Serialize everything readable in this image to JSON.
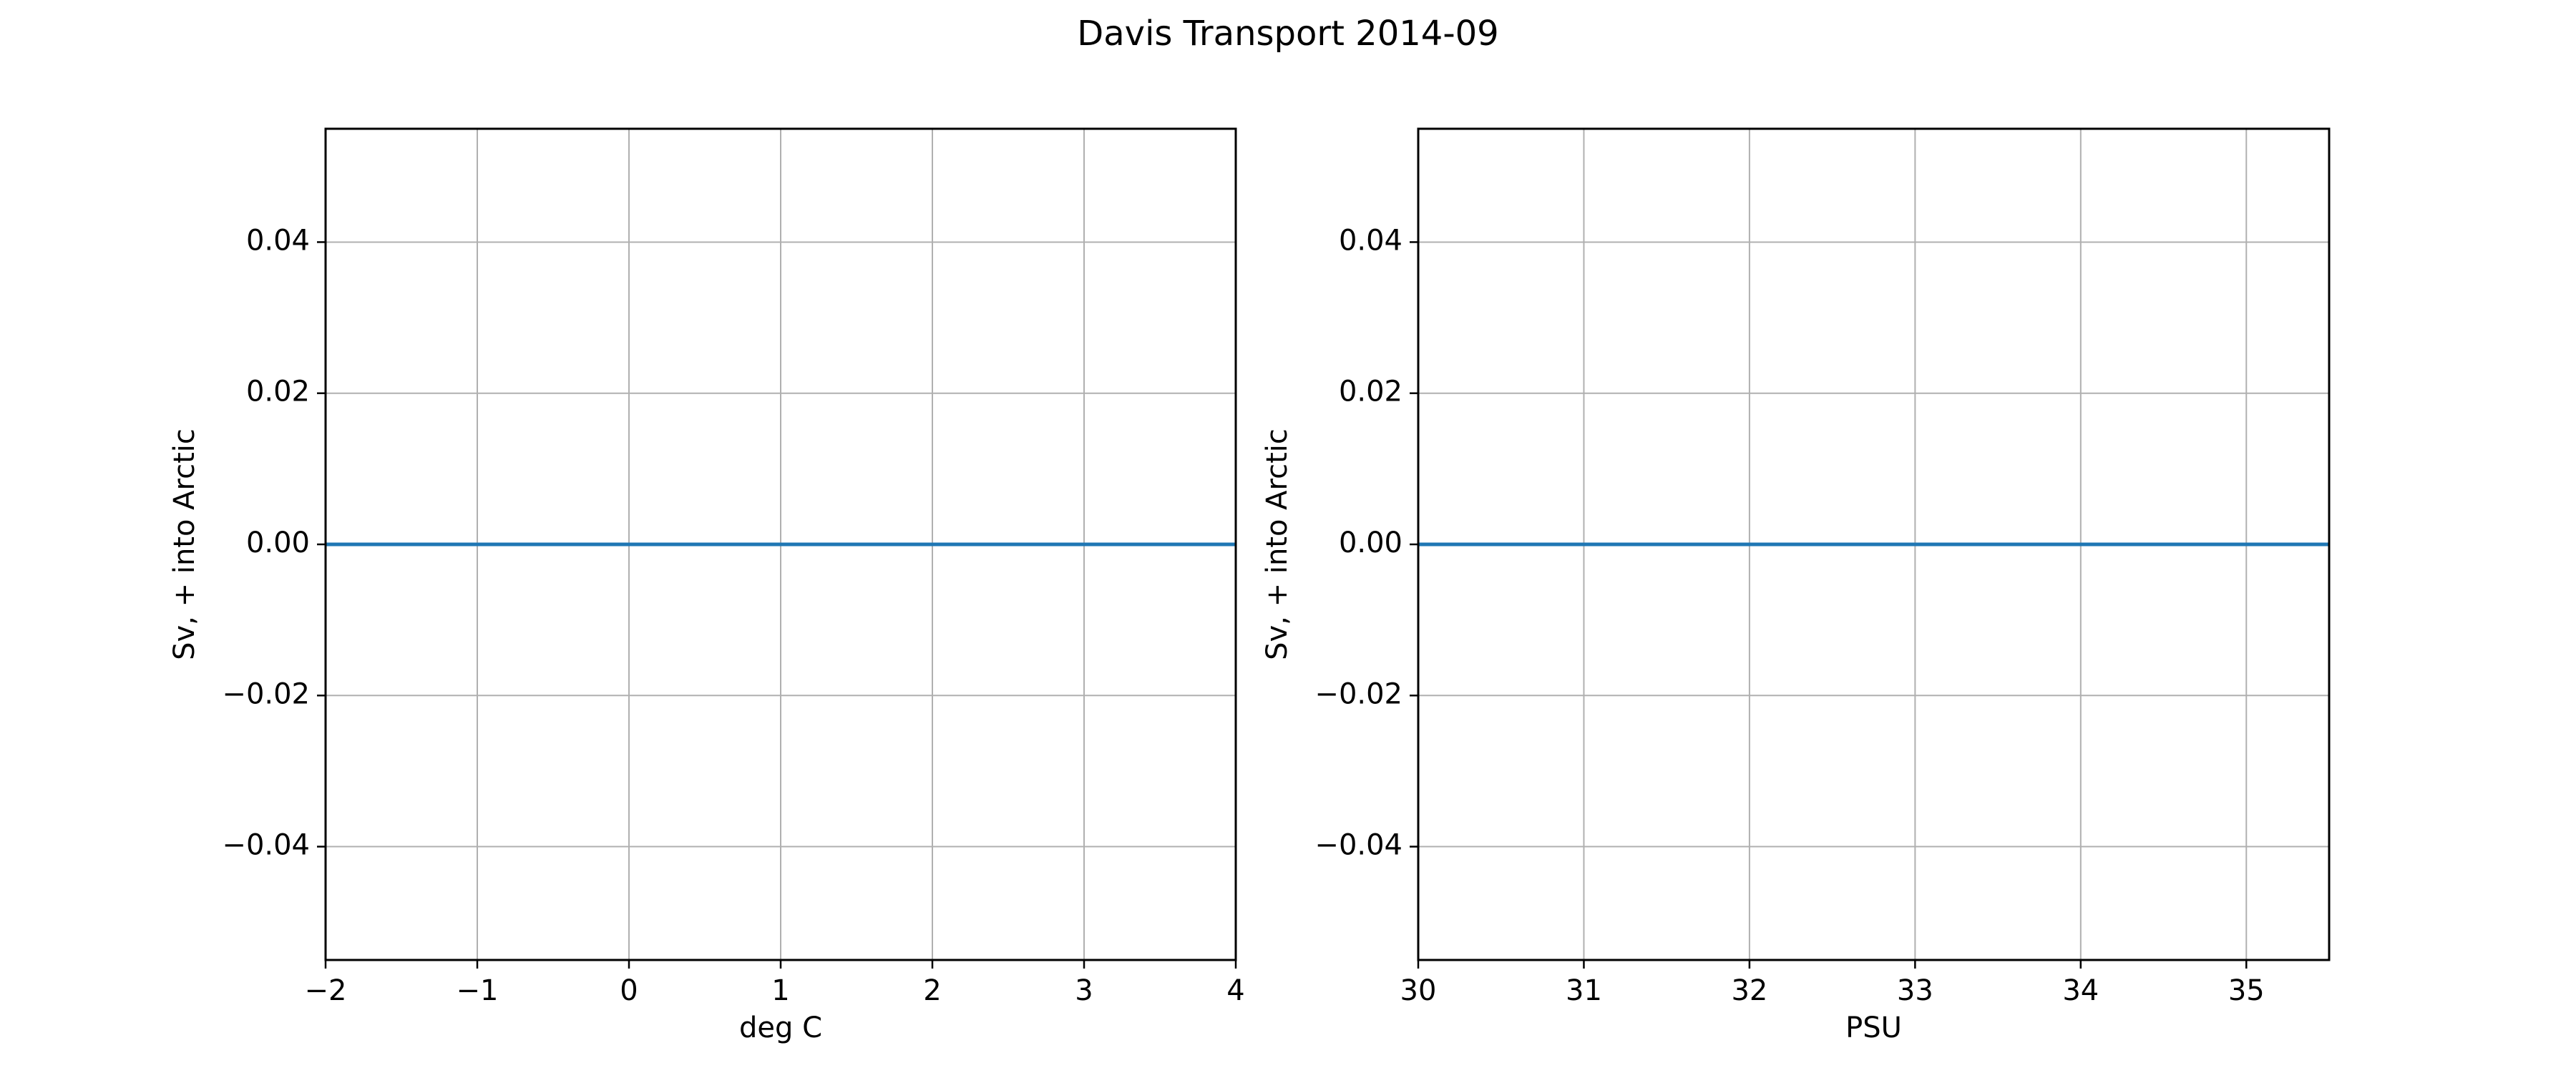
{
  "figure": {
    "title": "Davis Transport 2014-09"
  },
  "chart_data": [
    {
      "type": "line",
      "xlabel": "deg C",
      "ylabel": "Sv, + into Arctic",
      "xlim": [
        -2,
        4
      ],
      "ylim": [
        -0.055,
        0.055
      ],
      "xticks": [
        -2,
        -1,
        0,
        1,
        2,
        3,
        4
      ],
      "xtick_labels": [
        "−2",
        "−1",
        "0",
        "1",
        "2",
        "3",
        "4"
      ],
      "yticks": [
        -0.04,
        -0.02,
        0.0,
        0.02,
        0.04
      ],
      "ytick_labels": [
        "−0.04",
        "−0.02",
        "0.00",
        "0.02",
        "0.04"
      ],
      "grid": true,
      "series": [
        {
          "x": [
            -2,
            4
          ],
          "y": [
            0.0,
            0.0
          ],
          "color": "#1f77b4"
        }
      ]
    },
    {
      "type": "line",
      "xlabel": "PSU",
      "ylabel": "Sv, + into Arctic",
      "xlim": [
        30,
        35.5
      ],
      "ylim": [
        -0.055,
        0.055
      ],
      "xticks": [
        30,
        31,
        32,
        33,
        34,
        35
      ],
      "xtick_labels": [
        "30",
        "31",
        "32",
        "33",
        "34",
        "35"
      ],
      "yticks": [
        -0.04,
        -0.02,
        0.0,
        0.02,
        0.04
      ],
      "ytick_labels": [
        "−0.04",
        "−0.02",
        "0.00",
        "0.02",
        "0.04"
      ],
      "grid": true,
      "series": [
        {
          "x": [
            30,
            35.5
          ],
          "y": [
            0.0,
            0.0
          ],
          "color": "#1f77b4"
        }
      ]
    }
  ],
  "colors": {
    "grid": "#b0b0b0",
    "frame": "#000000",
    "line": "#1f77b4"
  }
}
